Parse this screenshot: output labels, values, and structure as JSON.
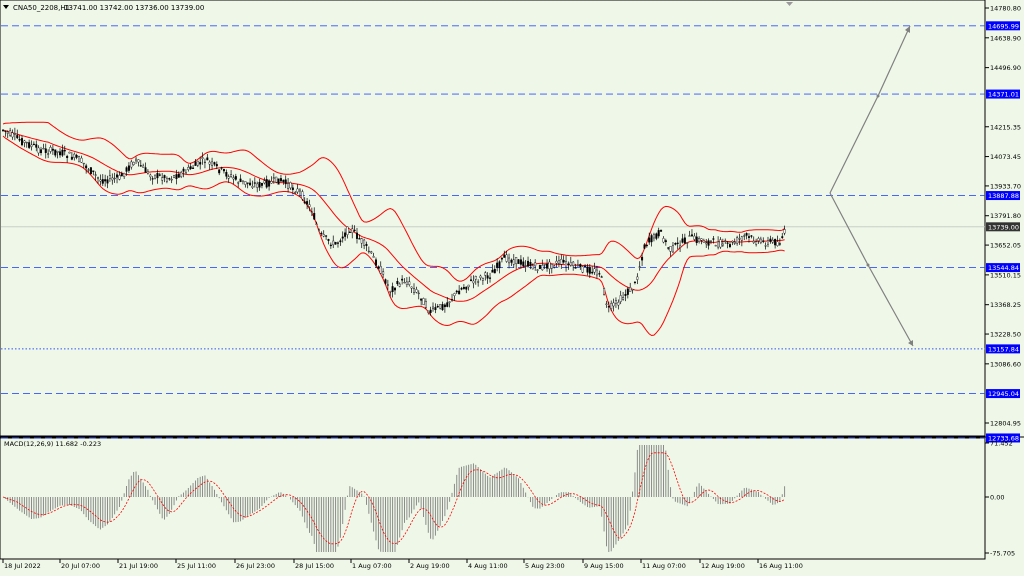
{
  "header": {
    "symbol": "CNA50_2208,H1",
    "ohlc": "13741.00 13742.00 13736.00 13739.00"
  },
  "macd": {
    "label": "MACD(12,26,9) 11.682 -0.223",
    "scale": [
      "71.452",
      "0.00",
      "-75.705"
    ]
  },
  "price_axis": [
    "14780.80",
    "14638.90",
    "14496.90",
    "14215.35",
    "14073.45",
    "13933.70",
    "13791.80",
    "13652.05",
    "13510.15",
    "13368.25",
    "13228.50",
    "13086.60",
    "12804.95"
  ],
  "levels": [
    {
      "label": "14695.99",
      "color": "#0000ff"
    },
    {
      "label": "14371.01",
      "color": "#0000ff"
    },
    {
      "label": "13887.88",
      "color": "#0000ff"
    },
    {
      "label": "13739.00",
      "color": "#333333"
    },
    {
      "label": "13544.84",
      "color": "#0000ff"
    },
    {
      "label": "13157.84",
      "color": "#0000ff"
    },
    {
      "label": "12945.04",
      "color": "#0000ff"
    },
    {
      "label": "12733.68",
      "color": "#0000ff"
    }
  ],
  "time_axis": [
    "18 Jul 2022",
    "20 Jul 07:00",
    "21 Jul 19:00",
    "25 Jul 11:00",
    "26 Jul 23:00",
    "28 Jul 15:00",
    "1 Aug 07:00",
    "2 Aug 19:00",
    "4 Aug 11:00",
    "5 Aug 23:00",
    "9 Aug 15:00",
    "11 Aug 07:00",
    "12 Aug 19:00",
    "16 Aug 11:00"
  ],
  "colors": {
    "background": "#eff8e8",
    "bollinger": "#ff0000",
    "level_line": "#3050ff",
    "projection": "#808080",
    "candles": "#000000",
    "histogram": "#808080",
    "signal": "#ff0000"
  }
}
